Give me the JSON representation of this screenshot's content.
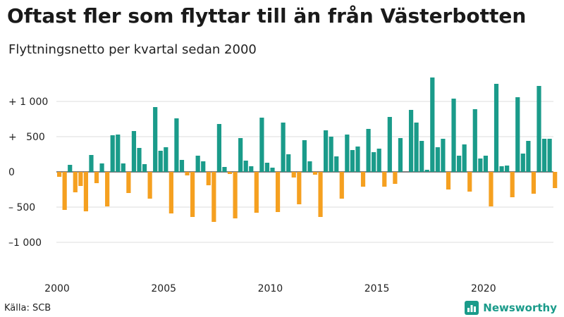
{
  "chart_data": {
    "type": "bar",
    "title": "Oftast fler som flyttar till än från Västerbotten",
    "subtitle": "Flyttningsnetto per kvartal sedan 2000",
    "x_tick_labels": [
      "2000",
      "2005",
      "2010",
      "2015",
      "2020"
    ],
    "y_tick_labels": [
      "+ 1 000",
      "+   500",
      "0",
      "– 500",
      "–1 000"
    ],
    "y_ticks": [
      1000,
      500,
      0,
      -500,
      -1000
    ],
    "ylim": [
      -1250,
      1350
    ],
    "grid": true,
    "legend": "none",
    "start_year": 2000,
    "quarterly_values": [
      -70,
      -540,
      100,
      -290,
      -200,
      -560,
      240,
      -160,
      120,
      -490,
      520,
      530,
      120,
      -300,
      580,
      340,
      110,
      -380,
      920,
      300,
      350,
      -590,
      760,
      170,
      -50,
      -640,
      230,
      150,
      -190,
      -710,
      680,
      70,
      -30,
      -660,
      480,
      160,
      80,
      -580,
      770,
      130,
      60,
      -570,
      700,
      250,
      -80,
      -460,
      450,
      150,
      -40,
      -640,
      590,
      500,
      220,
      -380,
      530,
      310,
      360,
      -210,
      610,
      280,
      330,
      -210,
      780,
      -170,
      480,
      0,
      880,
      700,
      440,
      30,
      1340,
      350,
      470,
      -250,
      1040,
      230,
      390,
      -280,
      890,
      190,
      230,
      -490,
      1250,
      80,
      90,
      -360,
      1060,
      260,
      440,
      -310,
      1220,
      470,
      470,
      -230
    ],
    "colors": {
      "positive": "#1a9b8a",
      "negative": "#f5a020",
      "grid": "#dddddd",
      "baseline": "#333333"
    }
  },
  "source": "Källa: SCB",
  "brand": {
    "name": "Newsworthy",
    "icon": "bar-chart-logo-icon"
  }
}
